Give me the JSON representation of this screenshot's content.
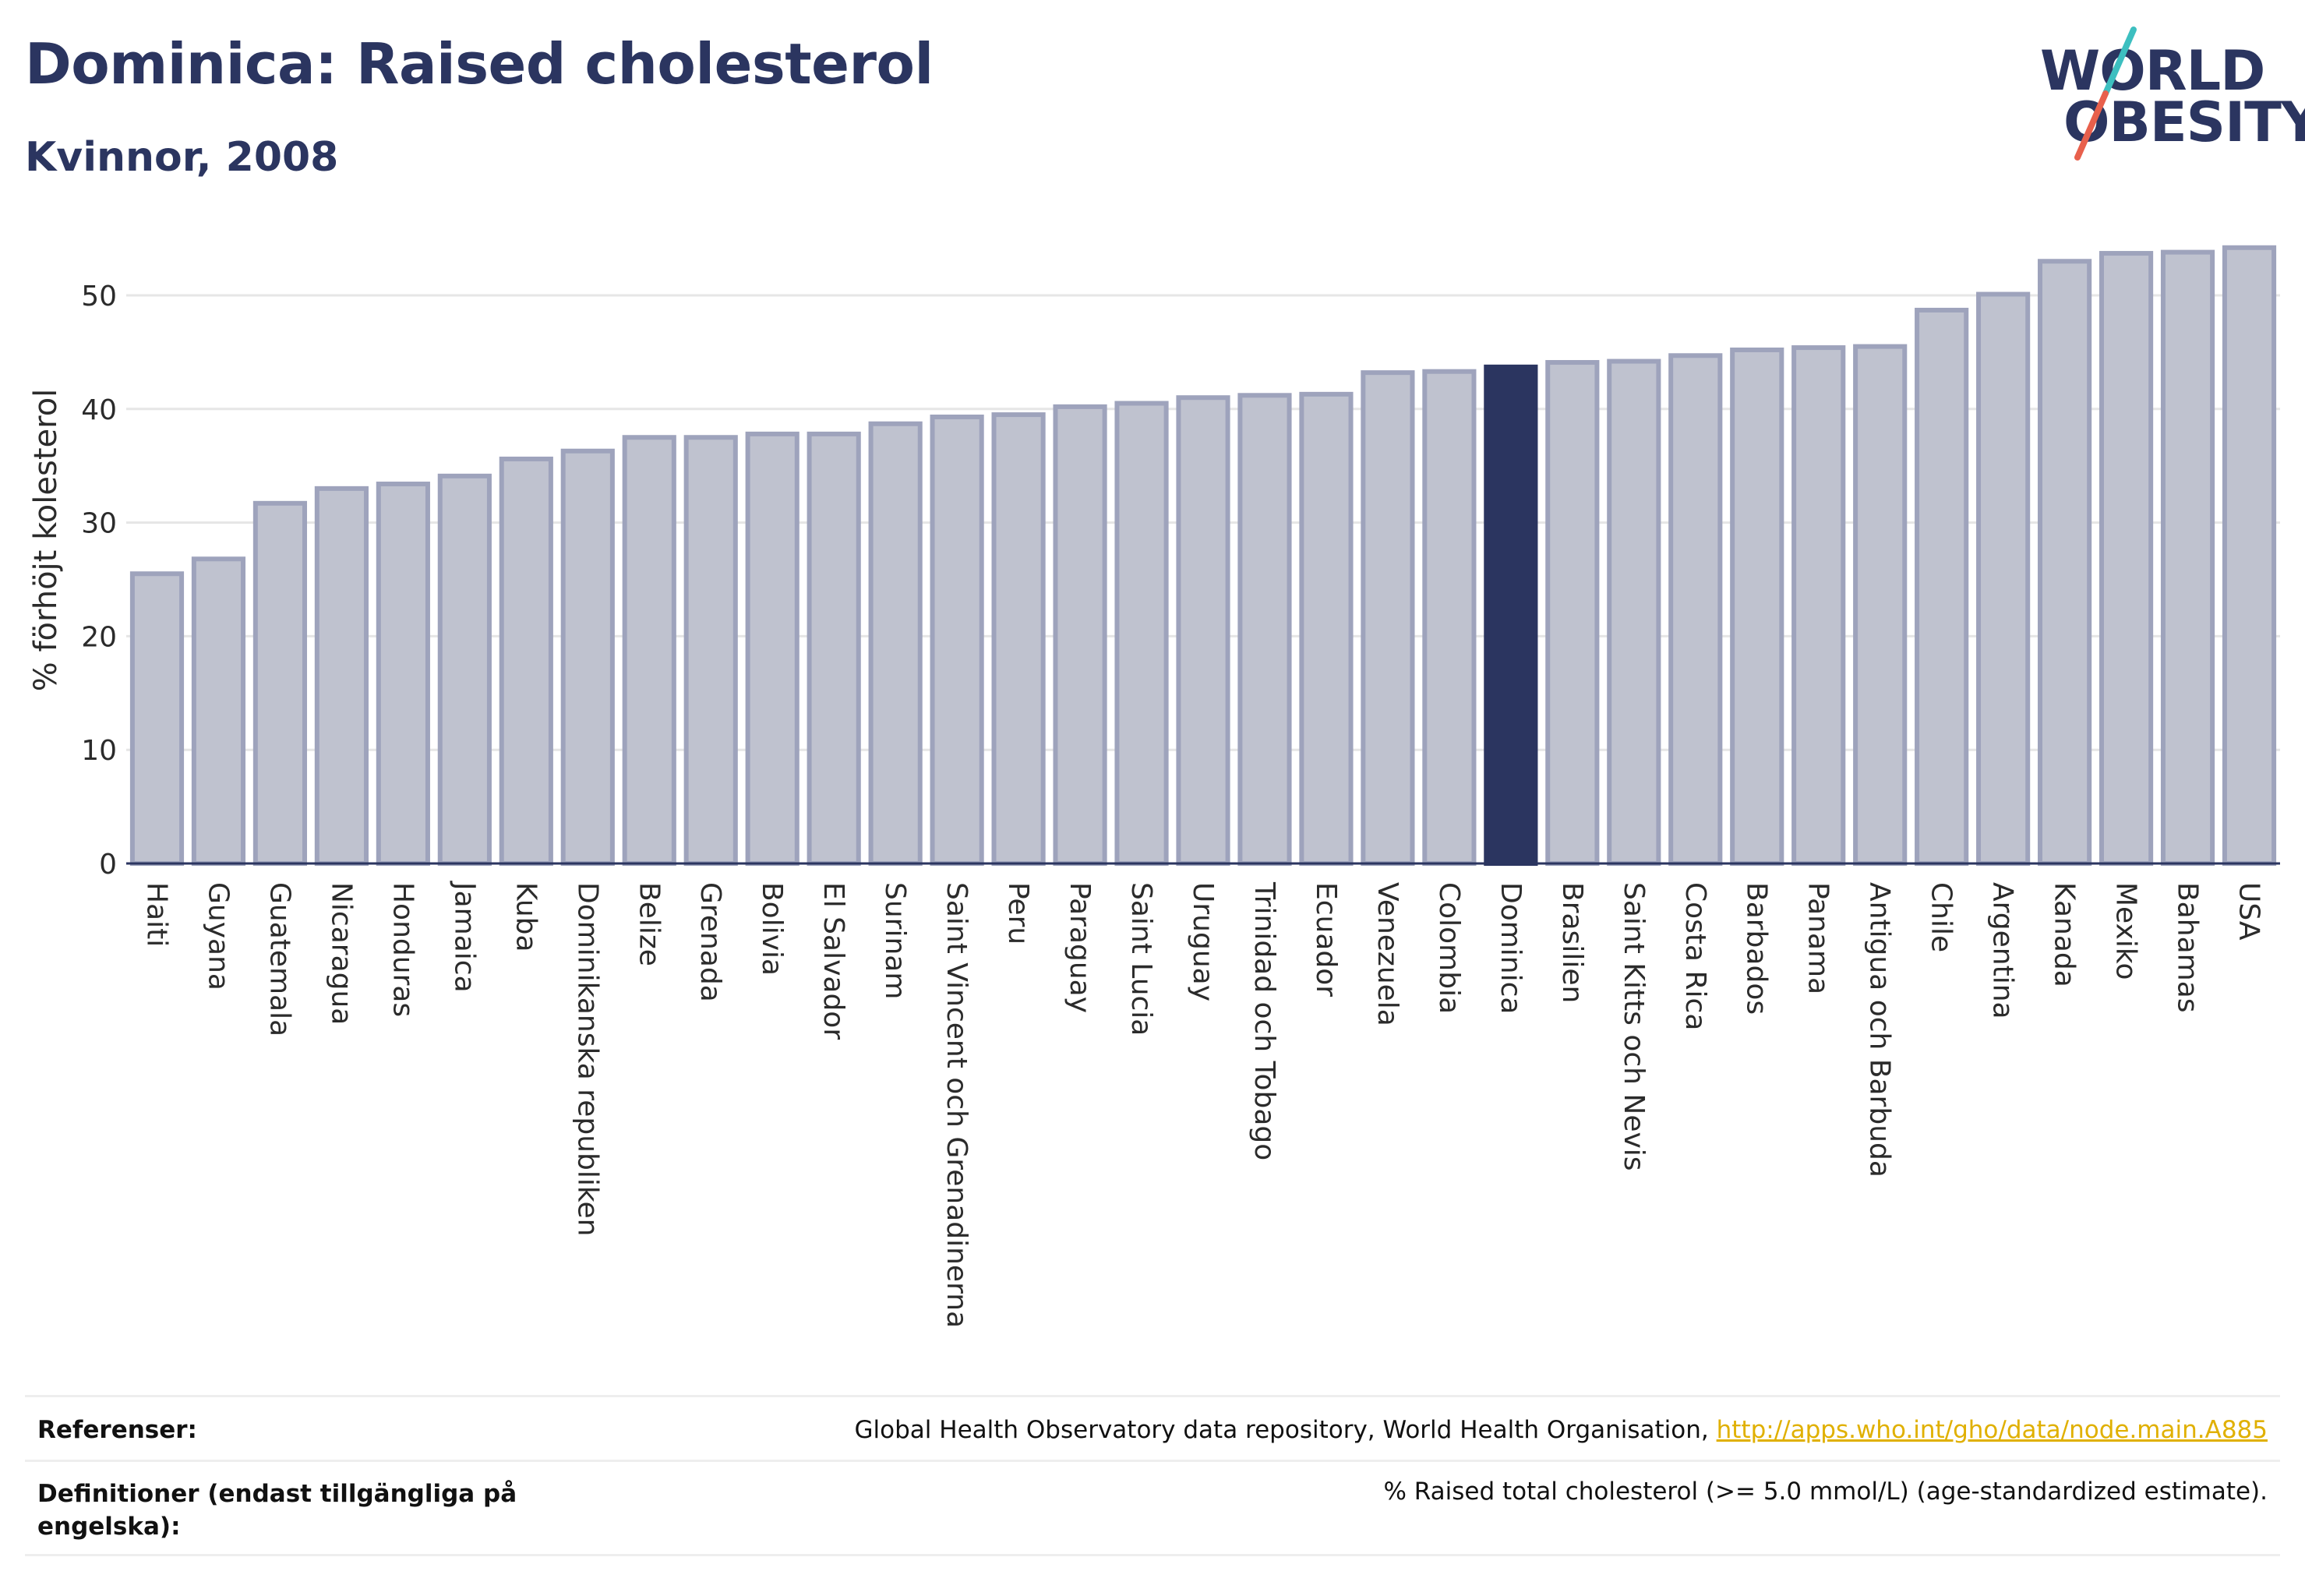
{
  "header": {
    "title": "Dominica: Raised cholesterol",
    "subtitle": "Kvinnor, 2008"
  },
  "logo": {
    "line1": "WORLD",
    "line2": "OBESITY",
    "colors": {
      "text": "#2b3560",
      "slash_top": "#3dbfc0",
      "slash_bottom": "#e8604c"
    }
  },
  "colors": {
    "bar": "#bfc2cf",
    "bar_border": "#9ea3bc",
    "highlight": "#2b3560",
    "grid": "#e6e6e6",
    "axis": "#2b3560",
    "link": "#e0b000"
  },
  "chart_data": {
    "type": "bar",
    "title": "Dominica: Raised cholesterol",
    "subtitle": "Kvinnor, 2008",
    "ylabel": "% förhöjt kolesterol",
    "xlabel": "",
    "ylim": [
      0,
      55
    ],
    "yticks": [
      0,
      10,
      20,
      30,
      40,
      50
    ],
    "grid": true,
    "highlight": "Dominica",
    "categories": [
      "Haiti",
      "Guyana",
      "Guatemala",
      "Nicaragua",
      "Honduras",
      "Jamaica",
      "Kuba",
      "Dominikanska republiken",
      "Belize",
      "Grenada",
      "Bolivia",
      "El Salvador",
      "Surinam",
      "Saint Vincent och Grenadinerna",
      "Peru",
      "Paraguay",
      "Saint Lucia",
      "Uruguay",
      "Trinidad och Tobago",
      "Ecuador",
      "Venezuela",
      "Colombia",
      "Dominica",
      "Brasilien",
      "Saint Kitts och Nevis",
      "Costa Rica",
      "Barbados",
      "Panama",
      "Antigua och Barbuda",
      "Chile",
      "Argentina",
      "Kanada",
      "Mexiko",
      "Bahamas",
      "USA"
    ],
    "values": [
      25.5,
      26.8,
      31.7,
      33.0,
      33.4,
      34.1,
      35.6,
      36.3,
      37.5,
      37.5,
      37.8,
      37.8,
      38.7,
      39.3,
      39.5,
      40.2,
      40.5,
      41.0,
      41.2,
      41.3,
      43.2,
      43.3,
      43.7,
      44.1,
      44.2,
      44.7,
      45.2,
      45.4,
      45.5,
      48.7,
      50.1,
      53.0,
      53.7,
      53.8,
      54.2
    ]
  },
  "footer": {
    "references_label": "Referenser:",
    "references_text": "Global Health Observatory data repository, World Health Organisation, ",
    "references_link": "http://apps.who.int/gho/data/node.main.A885",
    "definitions_label": "Definitioner (endast tillgängliga på engelska):",
    "definitions_text": "% Raised total cholesterol (>= 5.0 mmol/L) (age-standardized estimate)."
  }
}
